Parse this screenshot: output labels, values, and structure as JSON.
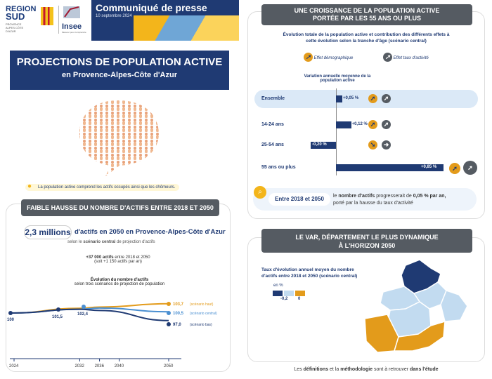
{
  "header": {
    "region_line1": "REGION",
    "region_line2": "SUD",
    "region_sub": "PROVENCE ALPES CÔTE D'AZUR",
    "insee": "Insee",
    "insee_sub": "Mesurer pour comprendre",
    "press_title": "Communiqué de presse",
    "press_date": "10 septembre 2024"
  },
  "title": {
    "line1": "PROJECTIONS DE POPULATION ACTIVE",
    "line2": "en Provence-Alpes-Côte d'Azur"
  },
  "note": "La population active comprend les actifs occupés ainsi que les chômeurs.",
  "left_panel": {
    "header": "FAIBLE HAUSSE DU NOMBRE D'ACTIFS ENTRE 2018 ET 2050",
    "headline_value": "2,3 millions",
    "headline_text": "d'actifs en 2050 en Provence-Alpes-Côte d'Azur",
    "scenario_text_pre": "selon le",
    "scenario_text_bold": "scénario central",
    "scenario_text_post": "de projection d'actifs",
    "delta_bold": "+37 000 actifs",
    "delta_text": "entre 2018 et 2050",
    "delta_sub": "(soit +1 150 actifs par an)"
  },
  "chart_data": [
    {
      "type": "line",
      "title": "Évolution du nombre d'actifs",
      "subtitle": "selon trois scénarios de projection de population",
      "x": [
        2024,
        2032,
        2036,
        2040,
        2050
      ],
      "series": [
        {
          "name": "scénario haut",
          "color": "#e39b1b",
          "points": [
            [
              2018,
              100
            ],
            [
              2032,
              101.9
            ],
            [
              2036,
              102.4
            ],
            [
              2050,
              103.7
            ]
          ]
        },
        {
          "name": "scénario central",
          "color": "#4a8fd1",
          "points": [
            [
              2018,
              100
            ],
            [
              2032,
              101.5
            ],
            [
              2036,
              102.0
            ],
            [
              2050,
              100.5
            ]
          ]
        },
        {
          "name": "scénario bas",
          "color": "#1f3a73",
          "points": [
            [
              2018,
              100
            ],
            [
              2032,
              101.5
            ],
            [
              2036,
              101.0
            ],
            [
              2050,
              97.0
            ]
          ]
        }
      ],
      "labels": {
        "start": "100",
        "p2032": "101,5",
        "p2036": "102,4",
        "haut": "103,7",
        "central": "100,5",
        "bas": "97,0"
      },
      "ylim": [
        96,
        105
      ]
    },
    {
      "type": "bar",
      "title": "Variation annuelle moyenne de la population active",
      "categories": [
        "Ensemble",
        "14-24 ans",
        "25-54 ans",
        "55 ans ou plus"
      ],
      "values": [
        0.05,
        0.12,
        -0.2,
        0.85
      ],
      "value_labels": [
        "+0,05 %",
        "+0,12 %",
        "-0,20 %",
        "+0,85 %"
      ]
    }
  ],
  "right_panel": {
    "header_l1": "UNE CROISSANCE DE LA POPULATION ACTIVE",
    "header_l2": "PORTÉE PAR LES 55 ANS OU PLUS",
    "sub_l1": "Évolution totale de la population active et contribution des différents effets à",
    "sub_l2": "cette évolution selon la tranche d'âge (scénario central)",
    "legend_demo": "Effet démographique",
    "legend_taux": "Effet taux d'activité",
    "conclusion_years": "Entre 2018 et 2050",
    "conclusion_pre": "le",
    "conclusion_bold": "nombre d'actifs",
    "conclusion_mid": "progresserait de",
    "conclusion_bold2": "0,05 % par an,",
    "conclusion_l2": "porté par la hausse du taux d'activité"
  },
  "map_panel": {
    "header_l1": "LE VAR, DÉPARTEMENT LE PLUS DYNAMIQUE",
    "header_l2": "À L'HORIZON 2050",
    "title_l1": "Taux d'évolution annuel moyen du nombre",
    "title_l2": "d'actifs entre 2018 et 2050 (scénario central)",
    "unit": "en %",
    "legend_vals": [
      "-0,2",
      "0"
    ],
    "colors": {
      "dark": "#1f3a73",
      "light": "#c2dbf0",
      "orange": "#e39b1b"
    }
  },
  "footer": {
    "pre": "Les",
    "b1": "définitions",
    "mid": "et la",
    "b2": "méthodologie",
    "mid2": "sont à retrouver",
    "b3": "dans l'étude"
  }
}
